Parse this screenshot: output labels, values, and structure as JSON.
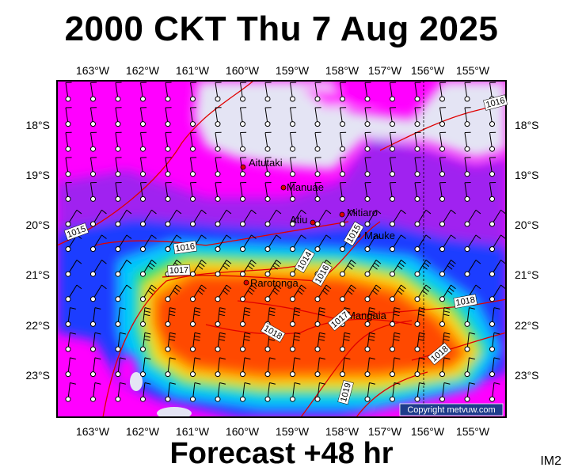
{
  "title": "2000 CKT Thu 7 Aug 2025",
  "footer": "Forecast +48 hr",
  "image_code": "IM2",
  "copyright": "Copyright metvuw.com",
  "lon_labels": [
    "163°W",
    "162°W",
    "161°W",
    "160°W",
    "159°W",
    "158°W",
    "157°W",
    "156°W",
    "155°W"
  ],
  "lat_labels": [
    "18°S",
    "19°S",
    "20°S",
    "21°S",
    "22°S",
    "23°S"
  ],
  "places": [
    {
      "name": "Aitutaki"
    },
    {
      "name": "Manuae"
    },
    {
      "name": "Atiu"
    },
    {
      "name": "Mitiaro"
    },
    {
      "name": "Mauke"
    },
    {
      "name": "Rarotonga"
    },
    {
      "name": "Mangaia"
    }
  ],
  "isobar_labels": [
    "1015",
    "1016",
    "1017",
    "1014",
    "1015",
    "1016",
    "1017",
    "1018",
    "1018",
    "1018",
    "1019",
    "1016"
  ],
  "colors": {
    "calm": "#e4e4f4",
    "magenta": "#ff00ff",
    "purple": "#a020f0",
    "blue": "#1e3cff",
    "cyan": "#00c8ff",
    "green": "#20e060",
    "yellow": "#ffe000",
    "orange": "#ff9000",
    "red": "#ff4800",
    "isobar": "#e00000",
    "frame": "#000000"
  }
}
